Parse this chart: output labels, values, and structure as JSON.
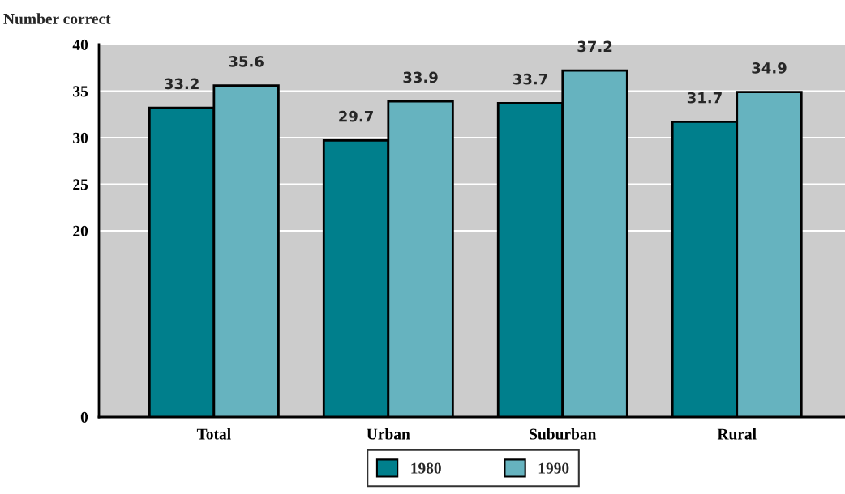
{
  "chart_data": {
    "type": "bar",
    "ylabel": "Number correct",
    "categories": [
      "Total",
      "Urban",
      "Suburban",
      "Rural"
    ],
    "series": [
      {
        "name": "1980",
        "color": "#007f8c",
        "values": [
          33.2,
          29.7,
          33.7,
          31.7
        ]
      },
      {
        "name": "1990",
        "color": "#66b3bf",
        "values": [
          35.6,
          33.9,
          37.2,
          34.9
        ]
      }
    ],
    "ylim": [
      0,
      40
    ],
    "yticks": [
      0,
      20,
      25,
      30,
      35,
      40
    ],
    "grid": "y",
    "legend": "bottom",
    "data_labels": true
  }
}
